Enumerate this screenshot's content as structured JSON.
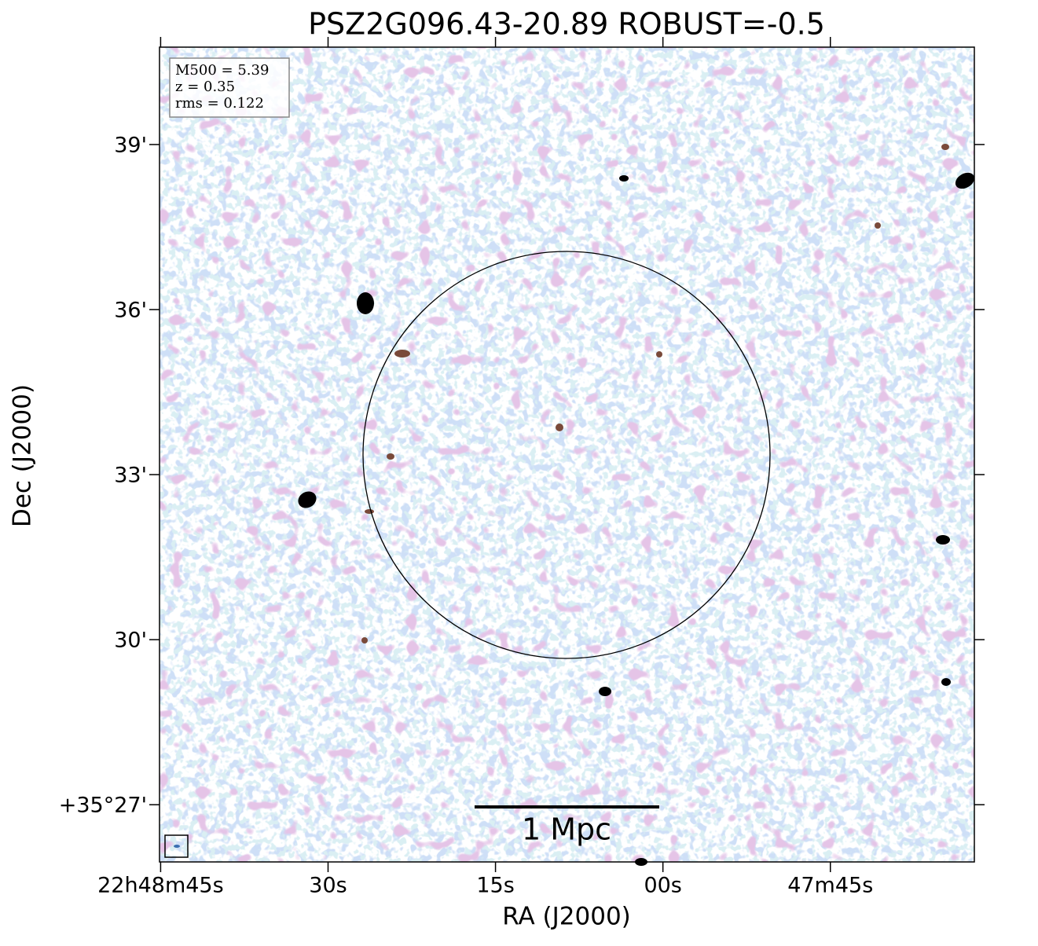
{
  "chart_data": {
    "type": "image",
    "title": "PSZ2G096.43-20.89 ROBUST=-0.5",
    "x_label": "RA (J2000)",
    "y_label": "Dec (J2000)",
    "xlim": [
      45.1,
      -27.9
    ],
    "xticks": [
      {
        "value": 45,
        "label": "22h48m45s"
      },
      {
        "value": 30,
        "label": "30s"
      },
      {
        "value": 15,
        "label": "15s"
      },
      {
        "value": 0,
        "label": "00s"
      },
      {
        "value": -15,
        "label": "47m45s"
      }
    ],
    "ylim": [
      25.96,
      40.77
    ],
    "yticks": [
      {
        "value": 39,
        "label": "39'"
      },
      {
        "value": 36,
        "label": "36'"
      },
      {
        "value": 33,
        "label": "33'"
      },
      {
        "value": 30,
        "label": "30'"
      },
      {
        "value": 27,
        "label": "+35°27'"
      }
    ],
    "info_box": [
      "M500 = 5.39",
      "z = 0.35",
      "rms = 0.122"
    ],
    "scale_bar_label": "1 Mpc"
  }
}
